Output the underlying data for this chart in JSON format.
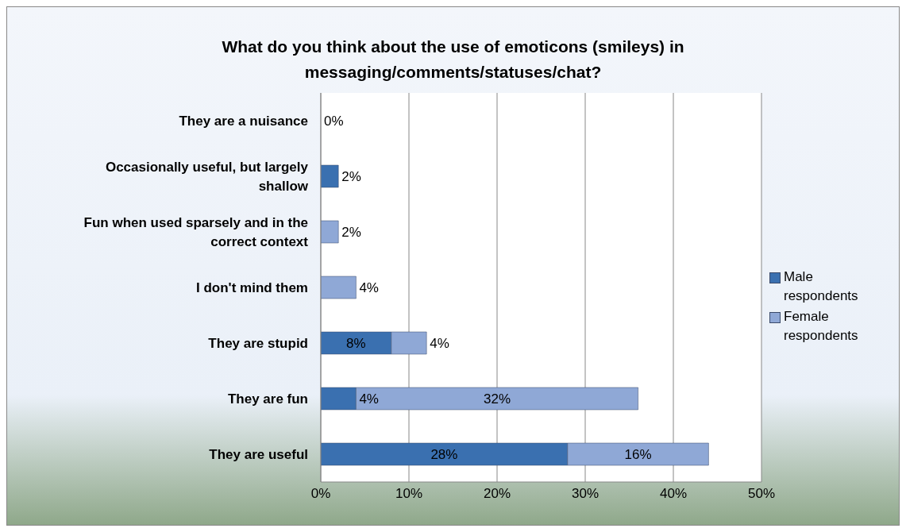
{
  "chart_data": {
    "type": "bar",
    "orientation": "horizontal",
    "stacked": true,
    "title": "What do you think about the use of emoticons (smileys) in messaging/comments/statuses/chat?",
    "categories": [
      "They are a nuisance",
      "Occasionally useful, but largely shallow",
      "Fun when used sparsely and in the correct context",
      "I don't mind them",
      "They are stupid",
      "They are fun",
      "They are useful"
    ],
    "series": [
      {
        "name": "Male respondents",
        "color": "#3a70b0",
        "values": [
          0,
          2,
          0,
          0,
          8,
          4,
          28
        ],
        "value_labels": [
          "0%",
          "2%",
          null,
          null,
          "8%",
          "4%",
          "28%"
        ]
      },
      {
        "name": "Female respondents",
        "color": "#8fa8d6",
        "values": [
          0,
          0,
          2,
          4,
          4,
          32,
          16
        ],
        "value_labels": [
          null,
          null,
          "2%",
          "4%",
          "4%",
          "32%",
          "16%"
        ]
      }
    ],
    "xlim": [
      0,
      50
    ],
    "xticks": [
      {
        "value": 0,
        "label": "0%"
      },
      {
        "value": 10,
        "label": "10%"
      },
      {
        "value": 20,
        "label": "20%"
      },
      {
        "value": 30,
        "label": "30%"
      },
      {
        "value": 40,
        "label": "40%"
      },
      {
        "value": 50,
        "label": "50%"
      }
    ],
    "grid": "x",
    "legend": "right"
  }
}
